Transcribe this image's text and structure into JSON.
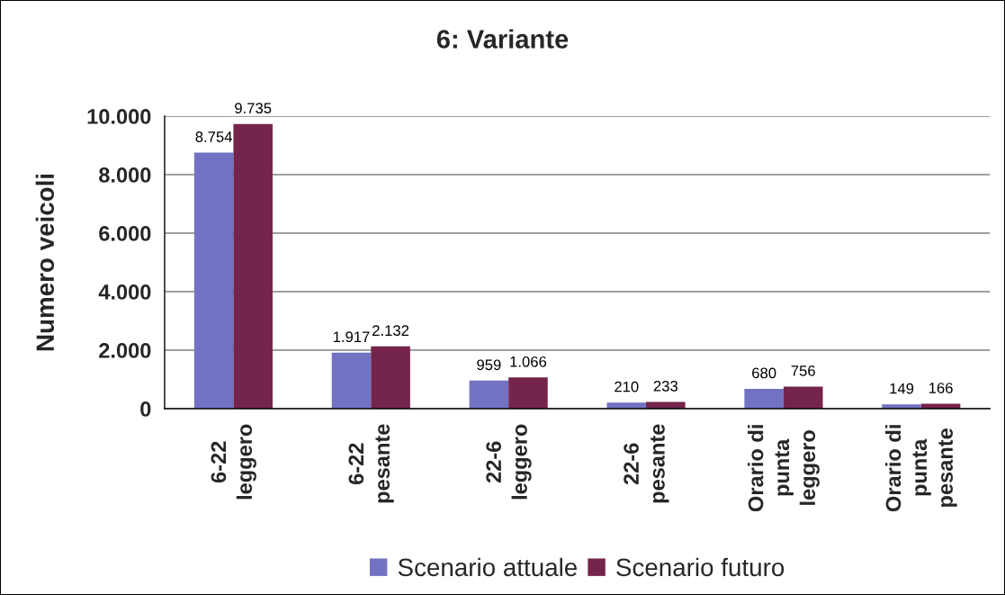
{
  "chart_data": {
    "type": "bar",
    "title": "6: Variante",
    "ylabel": "Numero veicoli",
    "categories": [
      "6-22\nleggero",
      "6-22\npesante",
      "22-6\nleggero",
      "22-6\npesante",
      "Orario di\npunta\nleggero",
      "Orario di\npunta\npesante"
    ],
    "series": [
      {
        "name": "Scenario attuale",
        "color": "#7272c2",
        "values": [
          8754,
          1917,
          959,
          210,
          680,
          149
        ],
        "value_labels": [
          "8.754",
          "1.917",
          "959",
          "210",
          "680",
          "149"
        ]
      },
      {
        "name": "Scenario futuro",
        "color": "#75244b",
        "values": [
          9735,
          2132,
          1066,
          233,
          756,
          166
        ],
        "value_labels": [
          "9.735",
          "2.132",
          "1.066",
          "233",
          "756",
          "166"
        ]
      }
    ],
    "ylim": [
      0,
      10000
    ],
    "yticks": [
      0,
      {
        "value": 2000,
        "label": "2.000"
      },
      {
        "value": 4000,
        "label": "4.000"
      },
      {
        "value": 6000,
        "label": "6.000"
      },
      {
        "value": 8000,
        "label": "8.000"
      },
      {
        "value": 10000,
        "label": "10.000"
      }
    ],
    "grid": "y",
    "legend": "bottom"
  }
}
